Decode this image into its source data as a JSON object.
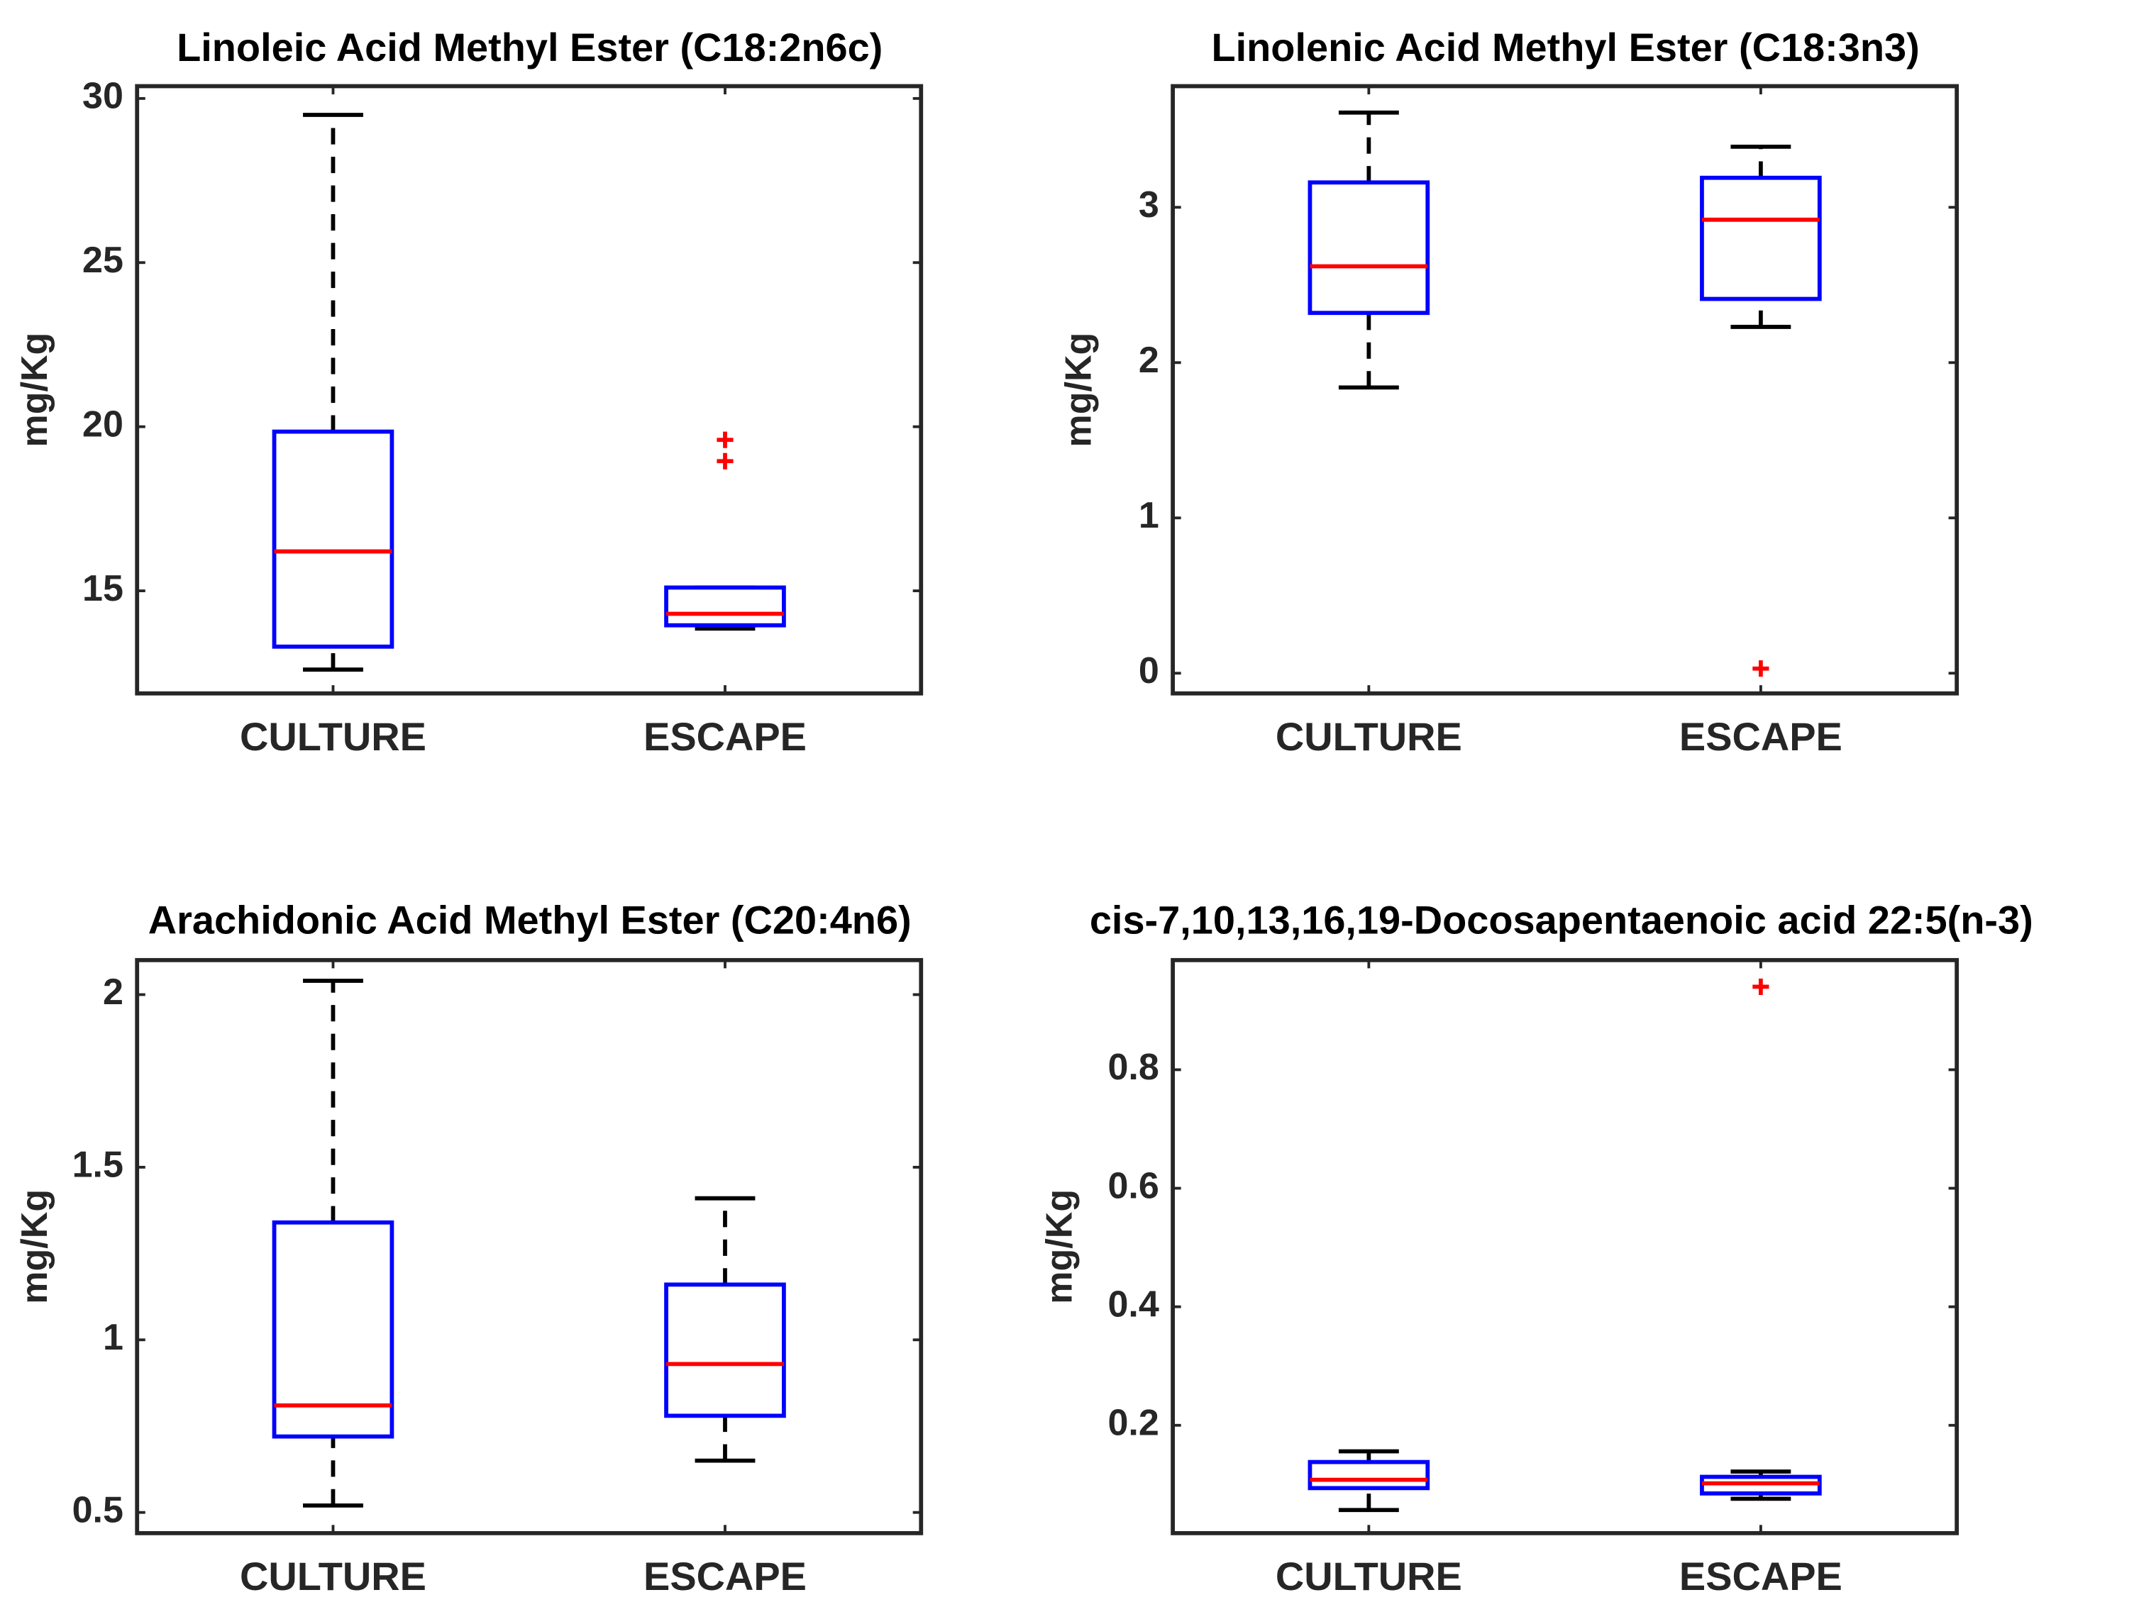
{
  "chart_data": [
    {
      "type": "box",
      "title": "Linoleic Acid Methyl Ester (C18:2n6c)",
      "ylabel": "mg/Kg",
      "categories": [
        "CULTURE",
        "ESCAPE"
      ],
      "boxes": [
        {
          "whislo": 12.6,
          "q1": 13.3,
          "med": 16.2,
          "q3": 19.85,
          "whishi": 29.5,
          "fliers": []
        },
        {
          "whislo": 13.85,
          "q1": 13.95,
          "med": 14.3,
          "q3": 15.1,
          "whishi": 15.1,
          "fliers": [
            19.6,
            18.95
          ]
        }
      ],
      "ylim": [
        11.875,
        30.375
      ],
      "yticks": [
        15,
        20,
        25,
        30
      ],
      "box_color": "#0000ff",
      "median_color": "#ff0000",
      "whisker_color": "#000000",
      "flier_color": "#ff0000"
    },
    {
      "type": "box",
      "title": "Linolenic Acid Methyl Ester (C18:3n3)",
      "ylabel": "mg/Kg",
      "categories": [
        "CULTURE",
        "ESCAPE"
      ],
      "boxes": [
        {
          "whislo": 1.84,
          "q1": 2.32,
          "med": 2.62,
          "q3": 3.16,
          "whishi": 3.61,
          "fliers": []
        },
        {
          "whislo": 2.23,
          "q1": 2.41,
          "med": 2.92,
          "q3": 3.19,
          "whishi": 3.39,
          "fliers": [
            0.03
          ]
        }
      ],
      "ylim": [
        -0.13,
        3.78
      ],
      "yticks": [
        0,
        1,
        2,
        3
      ],
      "box_color": "#0000ff",
      "median_color": "#ff0000",
      "whisker_color": "#000000",
      "flier_color": "#ff0000"
    },
    {
      "type": "box",
      "title": "Arachidonic Acid Methyl Ester (C20:4n6)",
      "ylabel": "mg/Kg",
      "categories": [
        "CULTURE",
        "ESCAPE"
      ],
      "boxes": [
        {
          "whislo": 0.52,
          "q1": 0.72,
          "med": 0.81,
          "q3": 1.34,
          "whishi": 2.04,
          "fliers": []
        },
        {
          "whislo": 0.65,
          "q1": 0.78,
          "med": 0.93,
          "q3": 1.16,
          "whishi": 1.41,
          "fliers": []
        }
      ],
      "ylim": [
        0.44,
        2.1
      ],
      "yticks": [
        0.5,
        1,
        1.5,
        2
      ],
      "box_color": "#0000ff",
      "median_color": "#ff0000",
      "whisker_color": "#000000",
      "flier_color": "#ff0000"
    },
    {
      "type": "box",
      "title": "cis-7,10,13,16,19-Docosapentaenoic acid 22:5(n-3)",
      "ylabel": "mg/Kg",
      "categories": [
        "CULTURE",
        "ESCAPE"
      ],
      "boxes": [
        {
          "whislo": 0.057,
          "q1": 0.094,
          "med": 0.108,
          "q3": 0.138,
          "whishi": 0.156,
          "fliers": []
        },
        {
          "whislo": 0.076,
          "q1": 0.085,
          "med": 0.102,
          "q3": 0.113,
          "whishi": 0.122,
          "fliers": [
            0.94
          ]
        }
      ],
      "ylim": [
        0.018,
        0.985
      ],
      "yticks": [
        0.2,
        0.4,
        0.6,
        0.8
      ],
      "box_color": "#0000ff",
      "median_color": "#ff0000",
      "whisker_color": "#000000",
      "flier_color": "#ff0000"
    }
  ]
}
